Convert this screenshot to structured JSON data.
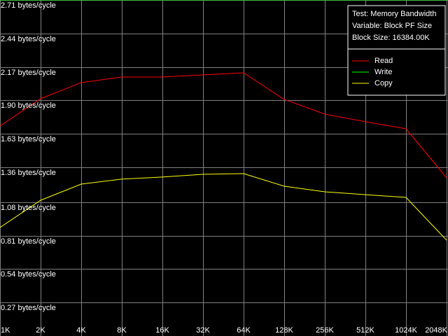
{
  "chart_data": {
    "type": "line",
    "info": [
      "Test: Memory Bandwidth",
      "Variable: Block PF Size",
      "Block Size: 16384.00K"
    ],
    "categories": [
      "1K",
      "2K",
      "4K",
      "8K",
      "16K",
      "32K",
      "64K",
      "128K",
      "256K",
      "512K",
      "1024K",
      "2048K"
    ],
    "series": [
      {
        "name": "Read",
        "color": "#ff0000",
        "values": [
          1.694,
          1.914,
          2.044,
          2.089,
          2.089,
          2.106,
          2.123,
          1.908,
          1.79,
          1.728,
          1.671,
          1.276
        ]
      },
      {
        "name": "Write",
        "color": "#00ff00",
        "values": [
          2.71,
          2.71,
          2.71,
          2.71,
          2.71,
          2.71,
          2.71,
          2.71,
          2.71,
          2.71,
          2.71,
          2.71
        ]
      },
      {
        "name": "Copy",
        "color": "#ffff00",
        "values": [
          0.875,
          1.095,
          1.225,
          1.265,
          1.282,
          1.304,
          1.31,
          1.208,
          1.163,
          1.14,
          1.118,
          0.773
        ]
      }
    ],
    "ylim": [
      0,
      2.71
    ],
    "yticks": [
      {
        "value": 0.27,
        "label": "0.27 bytes/cycle"
      },
      {
        "value": 0.54,
        "label": "0.54 bytes/cycle"
      },
      {
        "value": 0.81,
        "label": "0.81 bytes/cycle"
      },
      {
        "value": 1.08,
        "label": "1.08 bytes/cycle"
      },
      {
        "value": 1.36,
        "label": "1.36 bytes/cycle"
      },
      {
        "value": 1.63,
        "label": "1.63 bytes/cycle"
      },
      {
        "value": 1.9,
        "label": "1.90 bytes/cycle"
      },
      {
        "value": 2.17,
        "label": "2.17 bytes/cycle"
      },
      {
        "value": 2.44,
        "label": "2.44 bytes/cycle"
      },
      {
        "value": 2.71,
        "label": "2.71 bytes/cycle"
      }
    ],
    "grid": true
  }
}
